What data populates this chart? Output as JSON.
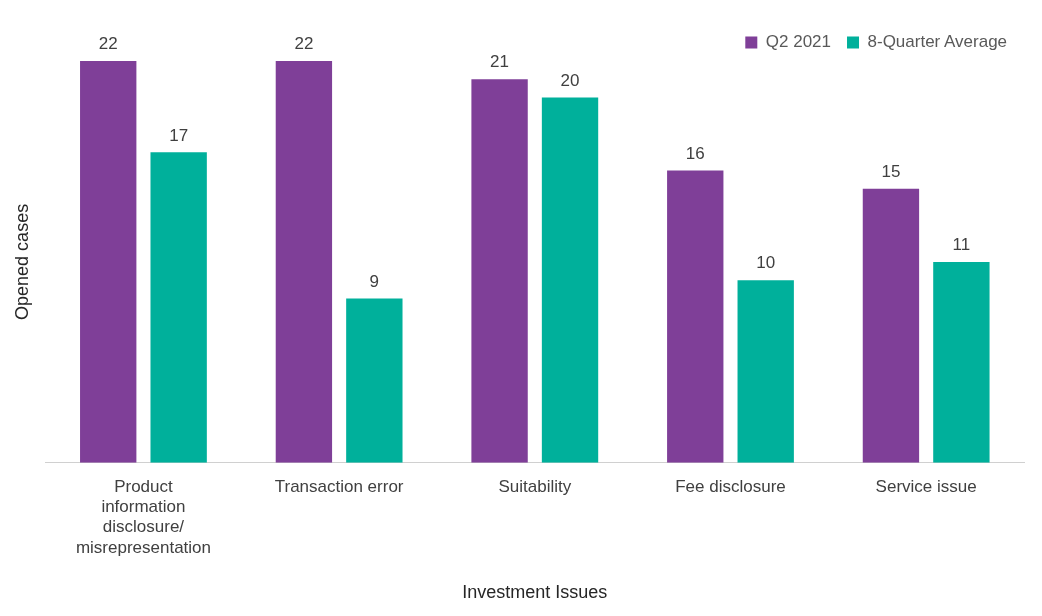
{
  "chart_data": {
    "type": "bar",
    "xlabel": "Investment Issues",
    "ylabel": "Opened cases",
    "categories": [
      "Product information disclosure/ misrepresentation",
      "Transaction error",
      "Suitability",
      "Fee disclosure",
      "Service issue"
    ],
    "series": [
      {
        "name": "Q2 2021",
        "color": "#7f3f98",
        "values": [
          22,
          22,
          21,
          16,
          15
        ]
      },
      {
        "name": "8-Quarter Average",
        "color": "#00b09b",
        "values": [
          17,
          9,
          20,
          10,
          11
        ]
      }
    ],
    "data_labels": true,
    "tick_labels": "x",
    "grid": false,
    "legend": "top right"
  }
}
